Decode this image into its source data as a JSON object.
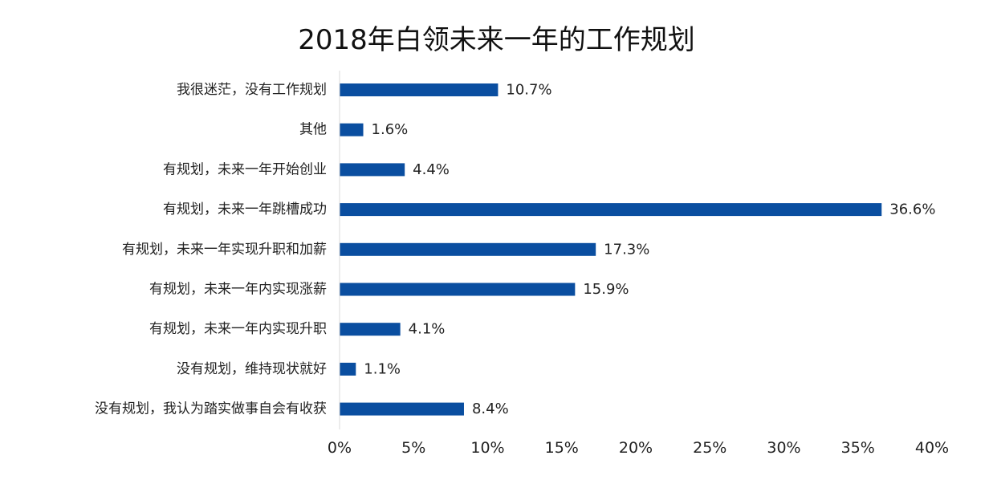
{
  "chart_data": {
    "type": "bar",
    "orientation": "horizontal",
    "title": "2018年白领未来一年的工作规划",
    "categories": [
      "我很迷茫，没有工作规划",
      "其他",
      "有规划，未来一年开始创业",
      "有规划，未来一年跳槽成功",
      "有规划，未来一年实现升职和加薪",
      "有规划，未来一年内实现涨薪",
      "有规划，未来一年内实现升职",
      "没有规划，维持现状就好",
      "没有规划，我认为踏实做事自会有收获"
    ],
    "values": [
      10.7,
      1.6,
      4.4,
      36.6,
      17.3,
      15.9,
      4.1,
      1.1,
      8.4
    ],
    "value_labels": [
      "10.7%",
      "1.6%",
      "4.4%",
      "36.6%",
      "17.3%",
      "15.9%",
      "4.1%",
      "1.1%",
      "8.4%"
    ],
    "xlim": [
      0,
      40
    ],
    "x_ticks": [
      0,
      5,
      10,
      15,
      20,
      25,
      30,
      35,
      40
    ],
    "x_tick_labels": [
      "0%",
      "5%",
      "10%",
      "15%",
      "20%",
      "25%",
      "30%",
      "35%",
      "40%"
    ],
    "grid": false,
    "legend": "none",
    "bar_color": "#0a4ea0"
  }
}
